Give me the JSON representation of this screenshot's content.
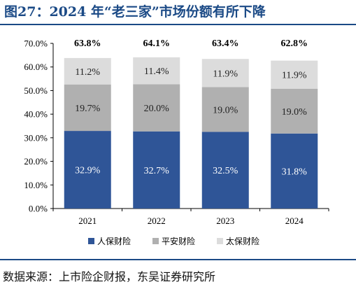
{
  "figure": {
    "title": "图27：2024 年“老三家”市场份额有所下降",
    "source": "数据来源：上市险企财报，东吴证券研究所"
  },
  "chart_data": {
    "type": "bar",
    "stacked": true,
    "categories": [
      "2021",
      "2022",
      "2023",
      "2024"
    ],
    "series": [
      {
        "name": "人保财险",
        "values": [
          32.9,
          32.7,
          32.5,
          31.8
        ],
        "labels": [
          "32.9%",
          "32.7%",
          "32.5%",
          "31.8%"
        ],
        "color": "#2f5597"
      },
      {
        "name": "平安财险",
        "values": [
          19.7,
          20.0,
          19.0,
          19.0
        ],
        "labels": [
          "19.7%",
          "20.0%",
          "19.0%",
          "19.0%"
        ],
        "color": "#b0b0b0"
      },
      {
        "name": "太保财险",
        "values": [
          11.2,
          11.4,
          11.9,
          11.9
        ],
        "labels": [
          "11.2%",
          "11.4%",
          "11.9%",
          "11.9%"
        ],
        "color": "#dcdcdc"
      }
    ],
    "totals": [
      63.8,
      64.1,
      63.4,
      62.8
    ],
    "total_labels": [
      "63.8%",
      "64.1%",
      "63.4%",
      "62.8%"
    ],
    "ylim": [
      0,
      70
    ],
    "yticks": [
      0,
      10,
      20,
      30,
      40,
      50,
      60,
      70
    ],
    "ytick_labels": [
      "0.0%",
      "10.0%",
      "20.0%",
      "30.0%",
      "40.0%",
      "50.0%",
      "60.0%",
      "70.0%"
    ],
    "legend_position": "bottom",
    "grid": false
  }
}
